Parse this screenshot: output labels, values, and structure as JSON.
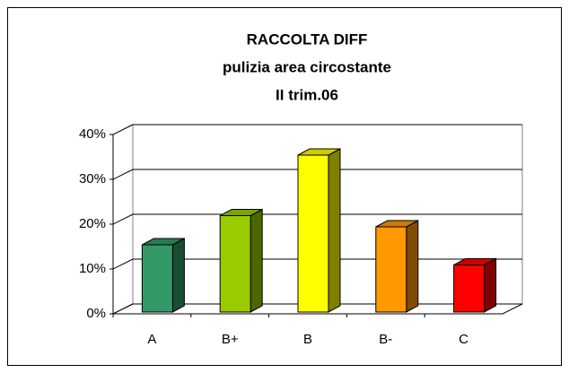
{
  "chart_data": {
    "type": "bar3d",
    "title": [
      "RACCOLTA DIFF",
      "pulizia area circostante",
      "II trim.06"
    ],
    "categories": [
      "A",
      "B+",
      "B",
      "B-",
      "C"
    ],
    "values": [
      15,
      21.5,
      35,
      19,
      10.5
    ],
    "colors": [
      "#339966",
      "#99cc00",
      "#ffff00",
      "#ff9900",
      "#ff0000"
    ],
    "ylim": [
      0,
      40
    ],
    "yticks": [
      {
        "value": 0,
        "label": "0%"
      },
      {
        "value": 10,
        "label": "10%"
      },
      {
        "value": 20,
        "label": "20%"
      },
      {
        "value": 30,
        "label": "30%"
      },
      {
        "value": 40,
        "label": "40%"
      }
    ],
    "grid": true
  }
}
